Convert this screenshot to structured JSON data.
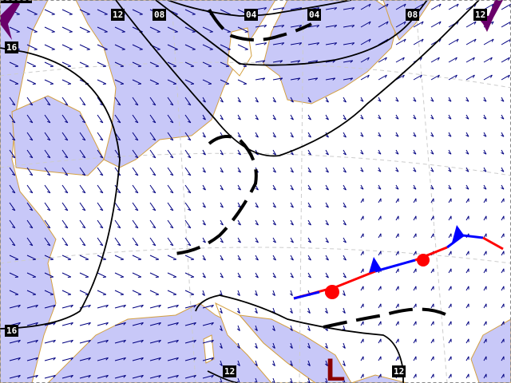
{
  "map": {
    "colors": {
      "sea": "#c8c8f8",
      "land": "#ffffff",
      "border": "#d4a040",
      "isobar": "#000000",
      "wind": "#000080",
      "warm_front": "#ff0000",
      "cold_front": "#0000ff",
      "low": "#8b0000",
      "occluded": "#6a006a"
    },
    "isobar_labels": [
      "12",
      "08",
      "04",
      "04",
      "08",
      "12",
      "16",
      "16",
      "12",
      "12"
    ],
    "pressure_centers": [
      {
        "type": "low",
        "label": "L"
      }
    ]
  }
}
